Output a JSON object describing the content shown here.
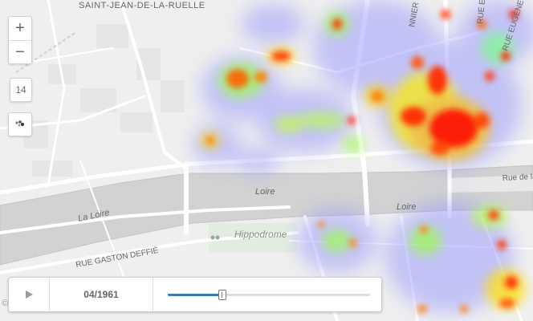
{
  "map": {
    "labels": {
      "neighborhood": "SAINT-JEAN-DE-LA-RUELLE",
      "river_name_1": "Loire",
      "river_name_2": "Loire",
      "river_name_3": "La Loire",
      "street_1": "RUE GASTON DEFFIÉ",
      "street_2": "NNIER",
      "street_3": "RUE EUGÈNE",
      "street_4": "RUE E",
      "street_5": "Rue de la Loire",
      "landmark": "Hippodrome"
    },
    "colors": {
      "land": "#efefef",
      "river": "#d2d2d2",
      "roads": "#ffffff",
      "park": "#e3ece1",
      "heat_low": "#8c8cff",
      "heat_mid": "#ffff00",
      "heat_high": "#ff0000"
    }
  },
  "controls": {
    "zoom_in": "+",
    "zoom_out": "−",
    "zoom_level": "14",
    "layer_icon": "heatmap-points-icon"
  },
  "timeline": {
    "play_icon": "play-icon",
    "date": "04/1961",
    "progress": 0.27
  },
  "attribution": "©"
}
